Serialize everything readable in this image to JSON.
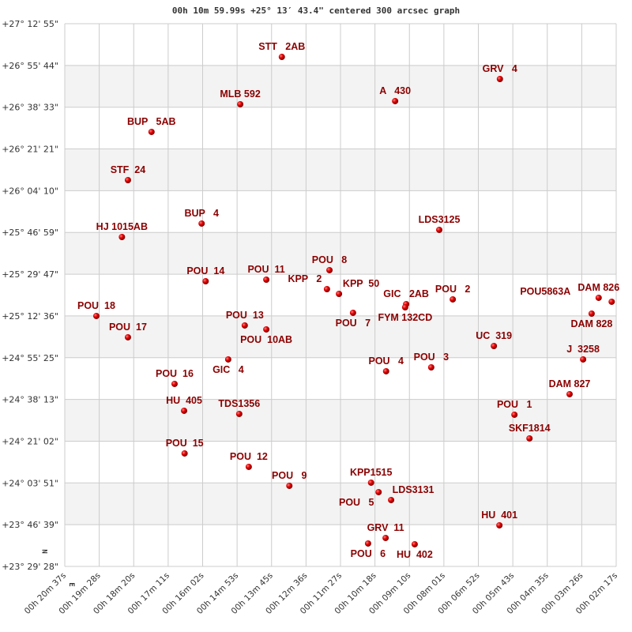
{
  "chart_data": {
    "type": "scatter",
    "title": "00h 10m 59.99s +25° 13′ 43.4\" centered 300 arcsec graph",
    "x_axis": {
      "direction": "RA decreasing to the right",
      "range": [
        "00h 20m 37s",
        "00h 02m 17s"
      ],
      "tick_labels": [
        "00h 20m 37s",
        "00h 19m 28s",
        "00h 18m 20s",
        "00h 17m 11s",
        "00h 16m 02s",
        "00h 14m 53s",
        "00h 13m 45s",
        "00h 12m 36s",
        "00h 11m 27s",
        "00h 10m 18s",
        "00h 09m 10s",
        "00h 08m 01s",
        "00h 06m 52s",
        "00h 05m 43s",
        "00h 04m 35s",
        "00h 03m 26s",
        "00h 02m 17s"
      ]
    },
    "y_axis": {
      "range": [
        "+23° 29' 28\"",
        "+27° 12' 55\""
      ],
      "tick_labels": [
        "+27° 12' 55\"",
        "+26° 55' 44\"",
        "+26° 38' 33\"",
        "+26° 21' 21\"",
        "+26° 04' 10\"",
        "+25° 46' 59\"",
        "+25° 29' 47\"",
        "+25° 12' 36\"",
        "+24° 55' 25\"",
        "+24° 38' 13\"",
        "+24° 21' 02\"",
        "+24° 03' 51\"",
        "+23° 46' 39\"",
        "+23° 29' 28\""
      ]
    },
    "grid": true,
    "alternating_bands": true,
    "compass": {
      "north": "N",
      "east": "E"
    },
    "colors": {
      "point": "#e00000",
      "label": "#8b0000",
      "band": "#f3f3f3",
      "grid": "#cccccc"
    },
    "points": [
      {
        "name": "STT   2AB",
        "ra": "00h 13m 24s",
        "dec": "+26° 59' 15\""
      },
      {
        "name": "GRV   4",
        "ra": "00h 06m 09s",
        "dec": "+26° 50' 09\""
      },
      {
        "name": "MLB 592",
        "ra": "00h 14m 47s",
        "dec": "+26° 39' 45\""
      },
      {
        "name": "A   430",
        "ra": "00h 09m 38s",
        "dec": "+26° 41' 03\""
      },
      {
        "name": "BUP   5AB",
        "ra": "00h 17m 44s",
        "dec": "+26° 28' 22\""
      },
      {
        "name": "STF  24",
        "ra": "00h 18m 31s",
        "dec": "+26° 08' 31\""
      },
      {
        "name": "BUP   4",
        "ra": "00h 16m 04s",
        "dec": "+25° 50' 38\""
      },
      {
        "name": "LDS3125",
        "ra": "00h 08m 10s",
        "dec": "+25° 48' 02\""
      },
      {
        "name": "HJ 1015AB",
        "ra": "00h 18m 43s",
        "dec": "+25° 45' 06\""
      },
      {
        "name": "POU   8",
        "ra": "00h 11m 49s",
        "dec": "+25° 31' 27\""
      },
      {
        "name": "POU  14",
        "ra": "00h 15m 56s",
        "dec": "+25° 26' 53\""
      },
      {
        "name": "POU  11",
        "ra": "00h 13m 55s",
        "dec": "+25° 27' 32\""
      },
      {
        "name": "KPP   2",
        "ra": "00h 11m 54s",
        "dec": "+25° 23' 38\""
      },
      {
        "name": "KPP  50",
        "ra": "00h 11m 30s",
        "dec": "+25° 21' 41\""
      },
      {
        "name": "GIC   2AB",
        "ra": "00h 09m 16s",
        "dec": "+25° 17' 28\""
      },
      {
        "name": "FYM 132CD",
        "ra": "00h 09m 18s",
        "dec": "+25° 16' 09\""
      },
      {
        "name": "POU   2",
        "ra": "00h 07m 43s",
        "dec": "+25° 19' 25\""
      },
      {
        "name": "POU   7",
        "ra": "00h 11m 02s",
        "dec": "+25° 13' 53\""
      },
      {
        "name": "DAM 826",
        "ra": "00h 02m 52s",
        "dec": "+25° 20' 04\""
      },
      {
        "name": "POU5863A",
        "ra": "00h 02m 26s",
        "dec": "+25° 18' 26\""
      },
      {
        "name": "DAM 828",
        "ra": "00h 03m 06s",
        "dec": "+25° 13' 33\""
      },
      {
        "name": "POU  18",
        "ra": "00h 19m 34s",
        "dec": "+25° 12' 35\""
      },
      {
        "name": "POU  17",
        "ra": "00h 18m 31s",
        "dec": "+25° 03' 48\""
      },
      {
        "name": "POU  13",
        "ra": "00h 14m 38s",
        "dec": "+25° 08' 41\""
      },
      {
        "name": "POU  10AB",
        "ra": "00h 13m 55s",
        "dec": "+25° 07' 03\""
      },
      {
        "name": "UC  319",
        "ra": "00h 06m 21s",
        "dec": "+25° 00' 13\""
      },
      {
        "name": "GIC   4",
        "ra": "00h 15m 11s",
        "dec": "+24° 54' 42\""
      },
      {
        "name": "J  3258",
        "ra": "00h 03m 23s",
        "dec": "+24° 54' 42\""
      },
      {
        "name": "POU   4",
        "ra": "00h 09m 56s",
        "dec": "+24° 49' 49\""
      },
      {
        "name": "POU   3",
        "ra": "00h 08m 26s",
        "dec": "+24° 51' 26\""
      },
      {
        "name": "POU  16",
        "ra": "00h 16m 58s",
        "dec": "+24° 44' 37\""
      },
      {
        "name": "DAM 827",
        "ra": "00h 03m 50s",
        "dec": "+24° 40' 23\""
      },
      {
        "name": "HU  405",
        "ra": "00h 16m 39s",
        "dec": "+24° 33' 33\""
      },
      {
        "name": "TDS1356",
        "ra": "00h 14m 49s",
        "dec": "+24° 32' 15\""
      },
      {
        "name": "POU   1",
        "ra": "00h 05m 40s",
        "dec": "+24° 31' 56\""
      },
      {
        "name": "SKF1814",
        "ra": "00h 05m 10s",
        "dec": "+24° 22' 10\""
      },
      {
        "name": "POU  15",
        "ra": "00h 16m 38s",
        "dec": "+24° 15' 59\""
      },
      {
        "name": "POU  12",
        "ra": "00h 14m 30s",
        "dec": "+24° 10' 28\""
      },
      {
        "name": "POU   9",
        "ra": "00h 13m 09s",
        "dec": "+24° 02' 39\""
      },
      {
        "name": "KPP1515",
        "ra": "00h 10m 26s",
        "dec": "+24° 03' 57\""
      },
      {
        "name": "POU   5",
        "ra": "00h 10m 11s",
        "dec": "+24° 00' 03\""
      },
      {
        "name": "LDS3131",
        "ra": "00h 09m 46s",
        "dec": "+23° 56' 48\""
      },
      {
        "name": "HU  401",
        "ra": "00h 06m 10s",
        "dec": "+23° 46' 24\""
      },
      {
        "name": "GRV  11",
        "ra": "00h 09m 57s",
        "dec": "+23° 41' 11\""
      },
      {
        "name": "POU   6",
        "ra": "00h 10m 32s",
        "dec": "+23° 38' 55\""
      },
      {
        "name": "HU  402",
        "ra": "00h 08m 59s",
        "dec": "+23° 38' 35\""
      }
    ]
  }
}
